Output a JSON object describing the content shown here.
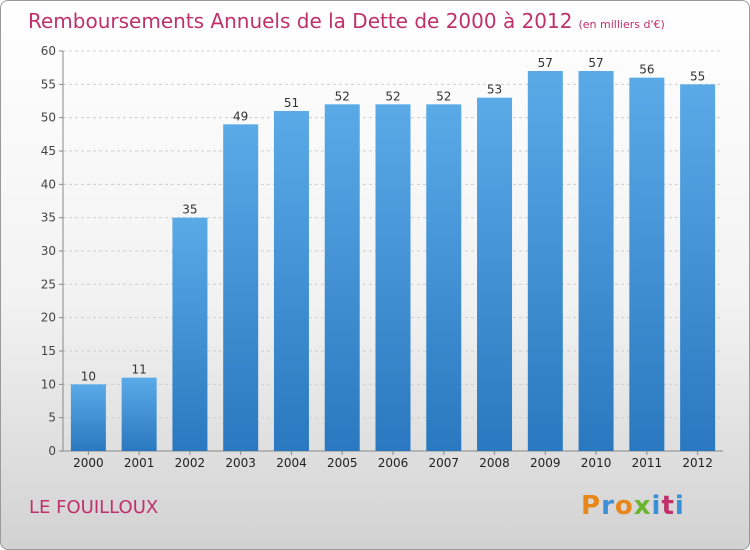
{
  "title": "Remboursements Annuels de la Dette de 2000 à 2012",
  "subtitle": "(en milliers d'€)",
  "commune": "LE FOUILLOUX",
  "logo": {
    "letters": [
      "P",
      "r",
      "o",
      "x",
      "i",
      "t",
      "i"
    ],
    "colors": [
      "#e8861a",
      "#3b8fd6",
      "#e8861a",
      "#6bb52e",
      "#3b8fd6",
      "#c0306b",
      "#3b8fd6"
    ]
  },
  "colors": {
    "bar_top": "#5aaae8",
    "bar_bottom": "#2a78bf",
    "title": "#c0306b"
  },
  "chart_data": {
    "type": "bar",
    "title": "Remboursements Annuels de la Dette de 2000 à 2012",
    "subtitle": "(en milliers d'€)",
    "xlabel": "",
    "ylabel": "",
    "categories": [
      "2000",
      "2001",
      "2002",
      "2003",
      "2004",
      "2005",
      "2006",
      "2007",
      "2008",
      "2009",
      "2010",
      "2011",
      "2012"
    ],
    "values": [
      10,
      11,
      35,
      49,
      51,
      52,
      52,
      52,
      53,
      57,
      57,
      56,
      55
    ],
    "ylim": [
      0,
      60
    ],
    "yticks": [
      0,
      5,
      10,
      15,
      20,
      25,
      30,
      35,
      40,
      45,
      50,
      55,
      60
    ],
    "grid": true
  }
}
